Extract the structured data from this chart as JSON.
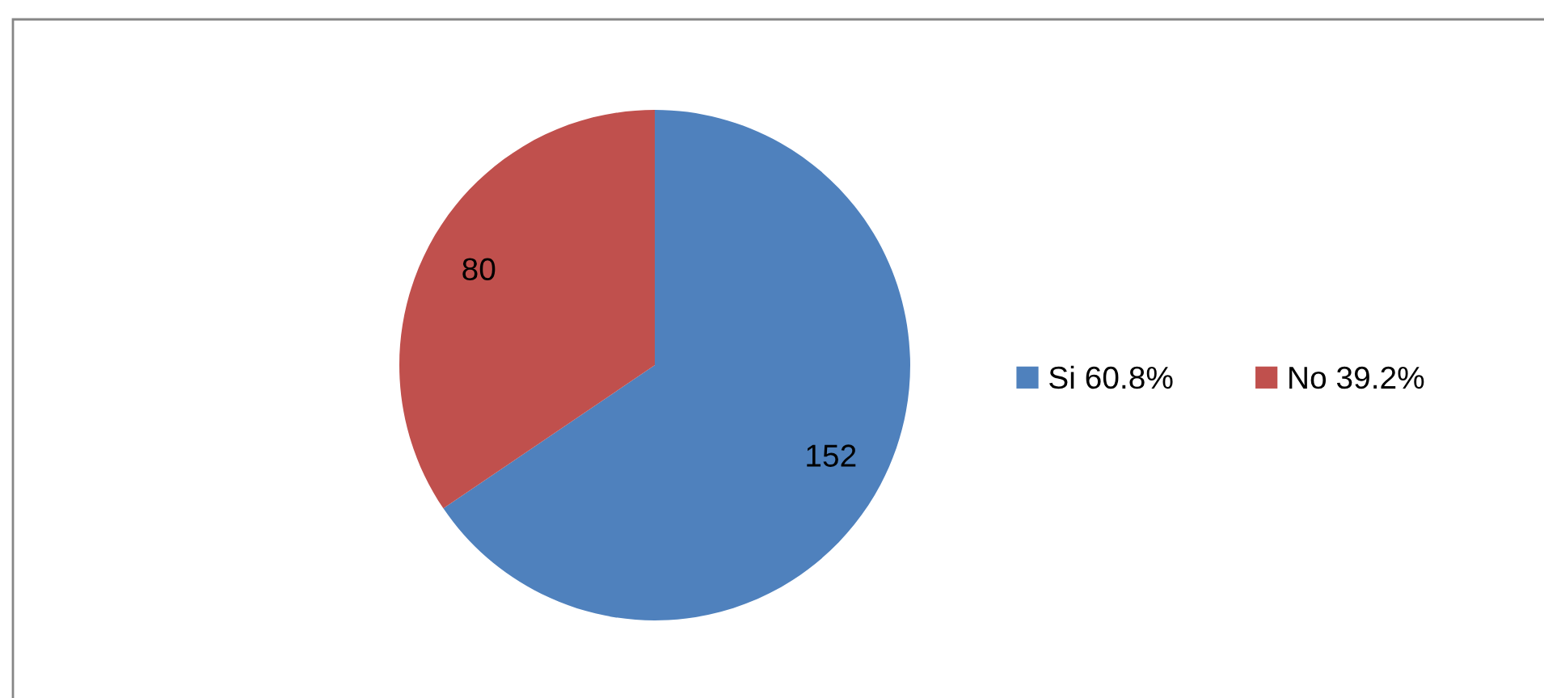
{
  "chart_data": {
    "type": "pie",
    "categories": [
      "Si 60.8%",
      "No 39.2%"
    ],
    "values": [
      152,
      80
    ],
    "colors": [
      "#4f81bd",
      "#c0504d"
    ],
    "data_labels": true,
    "legend": "right"
  }
}
